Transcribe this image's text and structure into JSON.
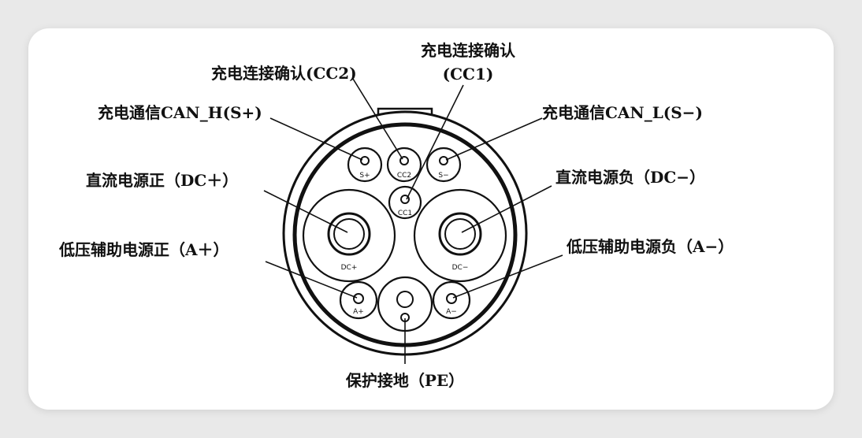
{
  "labels": {
    "cc1_line1": "充电连接确认",
    "cc1_line2": "(CC1)",
    "cc2": "充电连接确认(CC2)",
    "s_plus": "充电通信CAN_H(S+)",
    "s_minus": "充电通信CAN_L(S−)",
    "dc_plus": "直流电源正（DC＋）",
    "dc_minus": "直流电源负（DC−）",
    "a_plus": "低压辅助电源正（A＋）",
    "a_minus": "低压辅助电源负（A−）",
    "pe": "保护接地（PE）"
  },
  "pins": {
    "s_plus": "S+",
    "cc2": "CC2",
    "s_minus": "S−",
    "cc1": "CC1",
    "dc_plus": "DC+",
    "dc_minus": "DC−",
    "a_plus": "A+",
    "a_minus": "A−"
  }
}
